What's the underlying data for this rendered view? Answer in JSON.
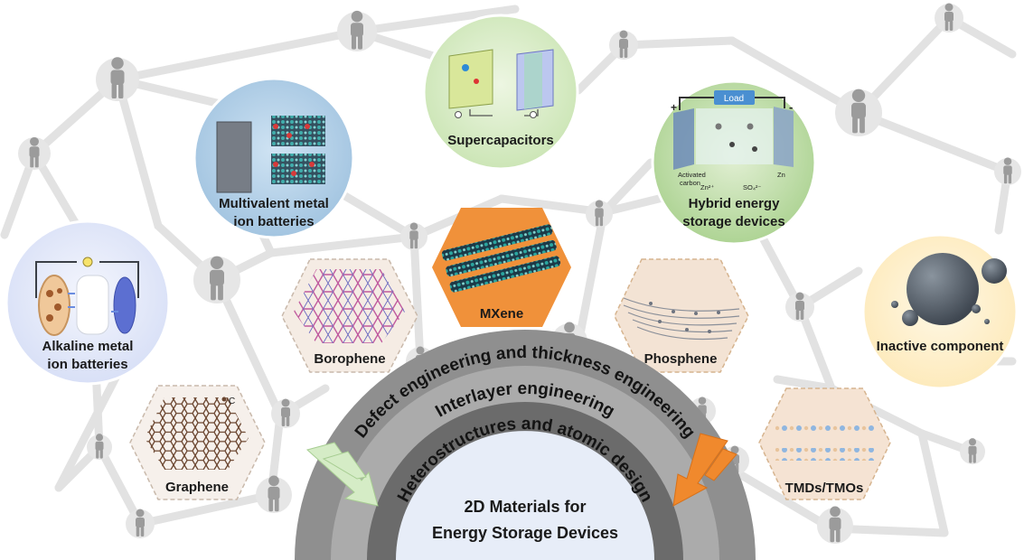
{
  "applications": {
    "alkaline": [
      "Alkaline metal",
      "ion batteries"
    ],
    "multivalent": [
      "Multivalent metal",
      "ion batteries"
    ],
    "supercapacitors": "Supercapacitors",
    "hybrid": [
      "Hybrid energy",
      "storage devices"
    ],
    "inactive": "Inactive component"
  },
  "materials": {
    "graphene": "Graphene",
    "borophene": "Borophene",
    "mxene": "MXene",
    "phosphene": "Phosphene",
    "tmds": "TMDs/TMOs"
  },
  "strategies": {
    "outer": "Defect engineering and thickness engineering",
    "middle": "Interlayer engineering",
    "inner": "Heterostructures and atomic design"
  },
  "center": [
    "2D Materials for",
    "Energy Storage Devices"
  ],
  "inset_text": {
    "graphene_atom": "C",
    "hybrid_load": "Load",
    "hybrid_plus": "+",
    "hybrid_minus": "-",
    "hybrid_carbon": [
      "Activated",
      "carbon"
    ],
    "hybrid_zn": "Zn",
    "hybrid_ions": [
      "Zn²⁺",
      "SO₄²⁻"
    ]
  },
  "colors": {
    "network_line": "#e2e2e2",
    "person": "#9b9b9b",
    "mxene": "#f0913a",
    "arc_outer": "#8f8f8f",
    "arc_middle": "#ababab",
    "arc_inner": "#6b6b6b",
    "center_fill": "#e7edf8",
    "arrow_left": "#d5ecc6",
    "arrow_right": "#f0892d"
  }
}
